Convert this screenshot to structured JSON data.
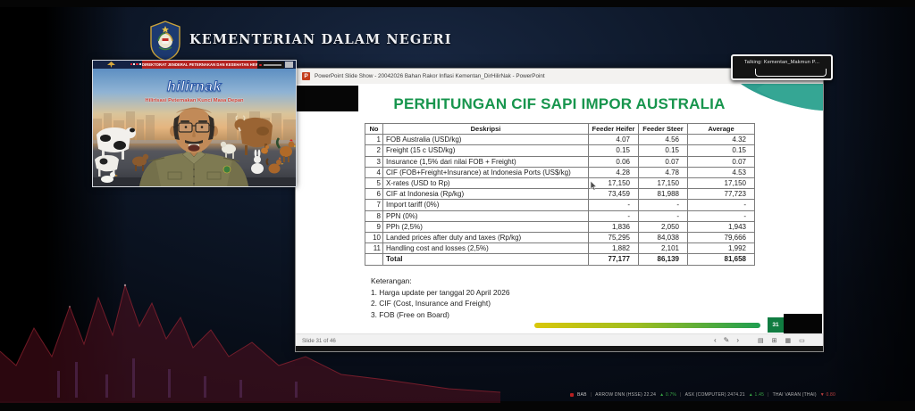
{
  "header": {
    "title": "KEMENTERIAN DALAM NEGERI"
  },
  "video_window": {
    "banner": "DIREKTORAT JENDERAL PETERNAKAN DAN KESEHATAN HEWAN",
    "logo": "hilirnak",
    "tagline": "Hilirisasi Peternakan Kunci Masa Depan"
  },
  "talking_indicator": {
    "label": "Talking:  Kementan_Makmun  P..."
  },
  "powerpoint": {
    "titlebar": {
      "icon_glyph": "P",
      "title": "PowerPoint Slide Show   -   20042026 Bahan Rakor Inflasi Kementan_DirHilirNak - PowerPoint"
    },
    "slide": {
      "title": "PERHITUNGAN CIF SAPI IMPOR AUSTRALIA",
      "table": {
        "headers": [
          "No",
          "Deskripsi",
          "Feeder Heifer",
          "Feeder Steer",
          "Average"
        ],
        "rows": [
          [
            "1",
            "FOB Australia (USD/kg)",
            "4.07",
            "4.56",
            "4.32"
          ],
          [
            "2",
            "Freight (15 c USD/kg)",
            "0.15",
            "0.15",
            "0.15"
          ],
          [
            "3",
            "Insurance (1,5% dari nilai FOB + Freight)",
            "0.06",
            "0.07",
            "0.07"
          ],
          [
            "4",
            "CIF (FOB+Freight+Insurance) at Indonesia Ports (US$/kg)",
            "4.28",
            "4.78",
            "4.53"
          ],
          [
            "5",
            "X-rates (USD to Rp)",
            "17,150",
            "17,150",
            "17,150"
          ],
          [
            "6",
            "CIF at Indonesia (Rp/kg)",
            "73,459",
            "81,988",
            "77,723"
          ],
          [
            "7",
            "Import tariff (0%)",
            "-",
            "-",
            "-"
          ],
          [
            "8",
            "PPN (0%)",
            "-",
            "-",
            "-"
          ],
          [
            "9",
            "PPh (2,5%)",
            "1,836",
            "2,050",
            "1,943"
          ],
          [
            "10",
            "Landed prices after duty and taxes (Rp/kg)",
            "75,295",
            "84,038",
            "79,666"
          ],
          [
            "11",
            "Handling cost and losses (2,5%)",
            "1,882",
            "2,101",
            "1,992"
          ],
          [
            "",
            "Total",
            "77,177",
            "86,139",
            "81,658"
          ]
        ]
      },
      "notes_heading": "Keterangan:",
      "notes": [
        "1.   Harga update per tanggal 20 April 2026",
        "2.   CIF (Cost, Insurance and Freight)",
        "3.   FOB (Free on Board)"
      ]
    },
    "statusbar": {
      "slide_label": "Slide 31 of 46",
      "nav_icons": [
        "‹",
        "✎",
        "›"
      ],
      "view_icons": [
        "▤",
        "⊞",
        "▦",
        "▭"
      ],
      "page_badge": "31"
    }
  },
  "ticker": {
    "segments": [
      {
        "text": "BAB",
        "color": "#d8d8d8"
      },
      {
        "text": "|",
        "color": "#666666"
      },
      {
        "text": "ARROW DNN (HSSE) 22.24",
        "color": "#c4c4c4"
      },
      {
        "text": "▲ 0.7%",
        "color": "#3db24a"
      },
      {
        "text": "|",
        "color": "#666666"
      },
      {
        "text": "ASX (COMPUTER) 2474.21",
        "color": "#c4c4c4"
      },
      {
        "text": "▲ 1.45",
        "color": "#3db24a"
      },
      {
        "text": "|",
        "color": "#666666"
      },
      {
        "text": "THAI VARAN (THAI)",
        "color": "#c4c4c4"
      },
      {
        "text": "▼ 0.80",
        "color": "#d04545"
      }
    ]
  },
  "colors": {
    "slide_title_green": "#17954d",
    "badge_green": "#107c41",
    "swoosh_teal": "#2f9e8f",
    "banner_red": "#b3221f"
  }
}
